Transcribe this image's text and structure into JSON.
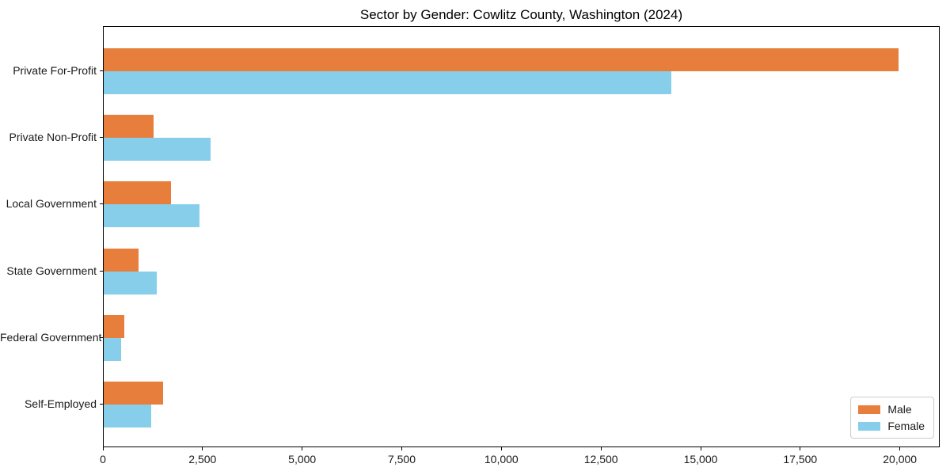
{
  "chart_data": {
    "type": "bar",
    "orientation": "horizontal",
    "title": "Sector by Gender: Cowlitz County, Washington (2024)",
    "categories": [
      "Private For-Profit",
      "Private Non-Profit",
      "Local Government",
      "State Government",
      "Federal Government",
      "Self-Employed"
    ],
    "series": [
      {
        "name": "Male",
        "color": "#e87e3b",
        "values": [
          19950,
          1250,
          1680,
          880,
          510,
          1490
        ]
      },
      {
        "name": "Female",
        "color": "#87ceeb",
        "values": [
          14240,
          2680,
          2400,
          1340,
          440,
          1190
        ]
      }
    ],
    "xlabel": "",
    "ylabel": "",
    "xlim": [
      0,
      21000
    ],
    "xticks": [
      0,
      2500,
      5000,
      7500,
      10000,
      12500,
      15000,
      17500,
      20000
    ],
    "xtick_labels": [
      "0",
      "2,500",
      "5,000",
      "7,500",
      "10,000",
      "12,500",
      "15,000",
      "17,500",
      "20,000"
    ],
    "grid": false,
    "legend_position": "lower-right"
  },
  "colors": {
    "background": "#ffffff",
    "axis": "#000000",
    "text": "#1a1a1a",
    "legend_border": "#cccccc"
  }
}
